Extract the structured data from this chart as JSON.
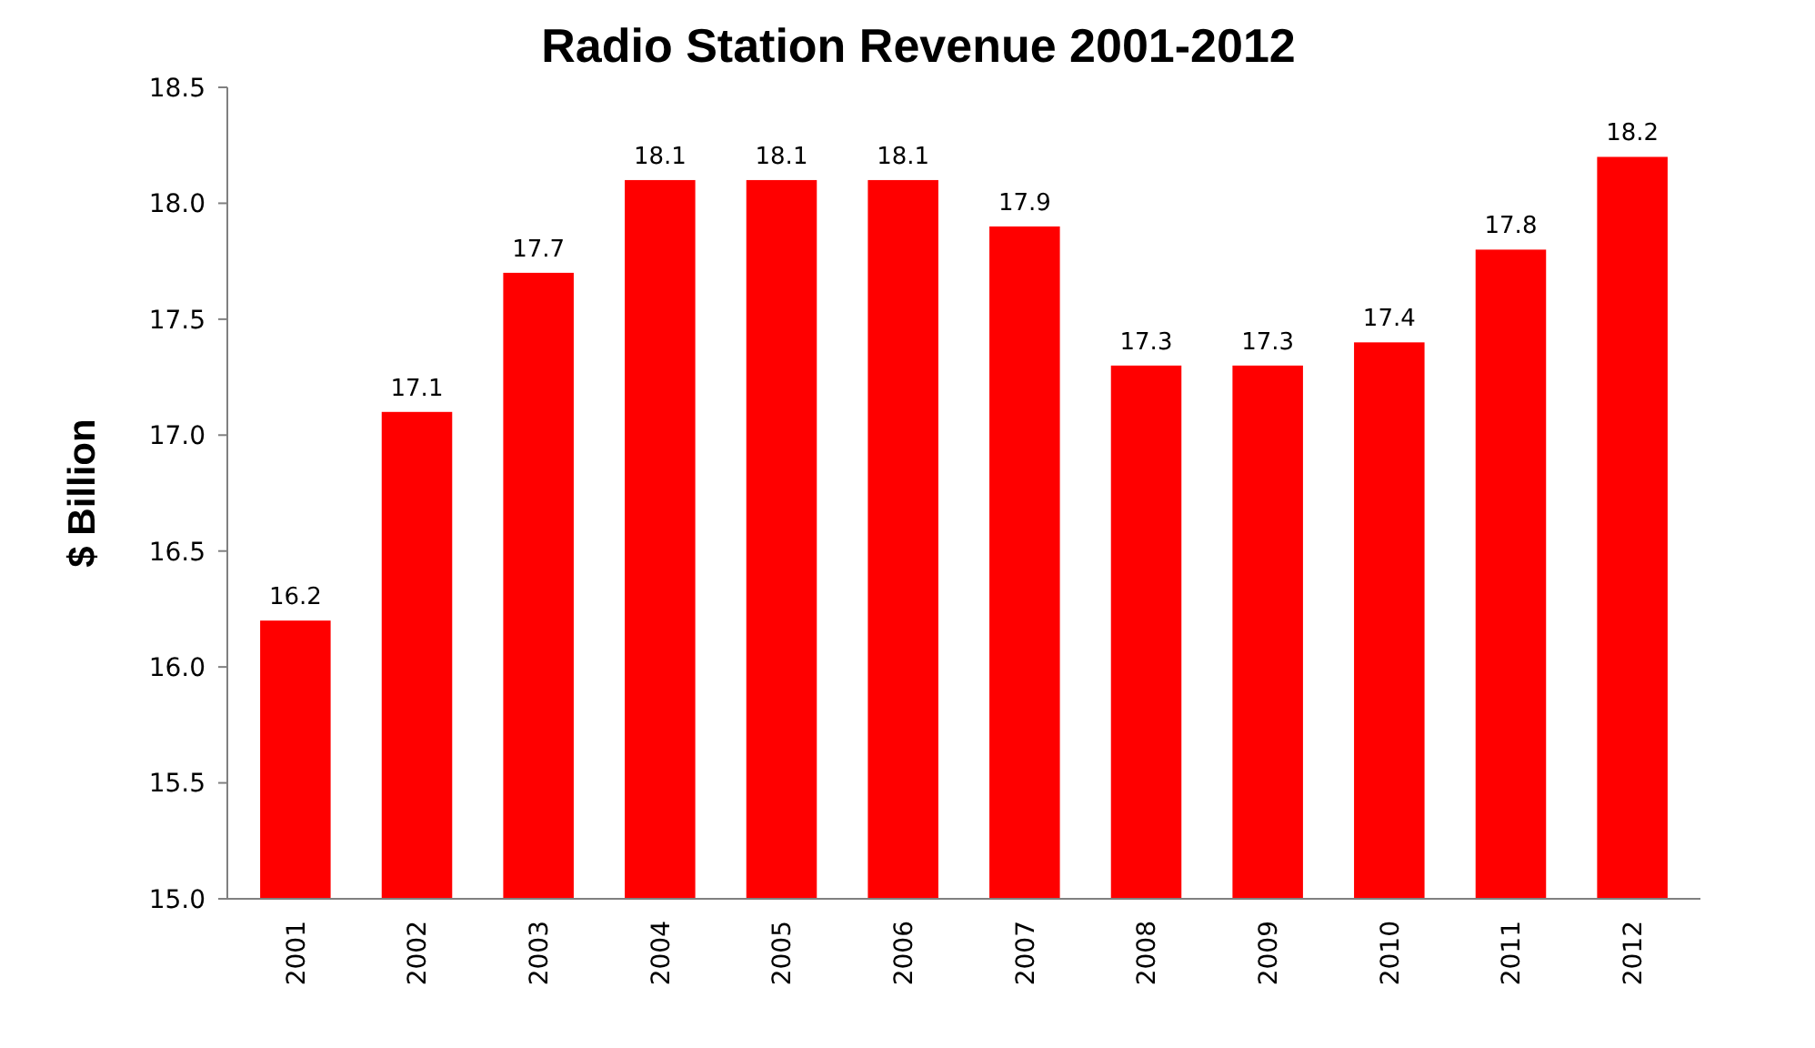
{
  "chart_data": {
    "type": "bar",
    "title": "Radio Station Revenue 2001-2012",
    "ylabel": "$ Billion",
    "categories": [
      "2001",
      "2002",
      "2003",
      "2004",
      "2005",
      "2006",
      "2007",
      "2008",
      "2009",
      "2010",
      "2011",
      "2012"
    ],
    "values": [
      16.2,
      17.1,
      17.7,
      18.1,
      18.1,
      18.1,
      17.9,
      17.3,
      17.3,
      17.4,
      17.8,
      18.2
    ],
    "color": "#ff0000",
    "data_labels": true,
    "ylim": [
      15,
      18.5
    ],
    "yticks": [
      {
        "value": 15,
        "label": "15.0"
      },
      {
        "value": 15.5,
        "label": "15.5"
      },
      {
        "value": 16,
        "label": "16.0"
      },
      {
        "value": 16.5,
        "label": "16.5"
      },
      {
        "value": 17,
        "label": "17.0"
      },
      {
        "value": 17.5,
        "label": "17.5"
      },
      {
        "value": 18,
        "label": "18.0"
      },
      {
        "value": 18.5,
        "label": "18.5"
      }
    ],
    "grid": false
  }
}
